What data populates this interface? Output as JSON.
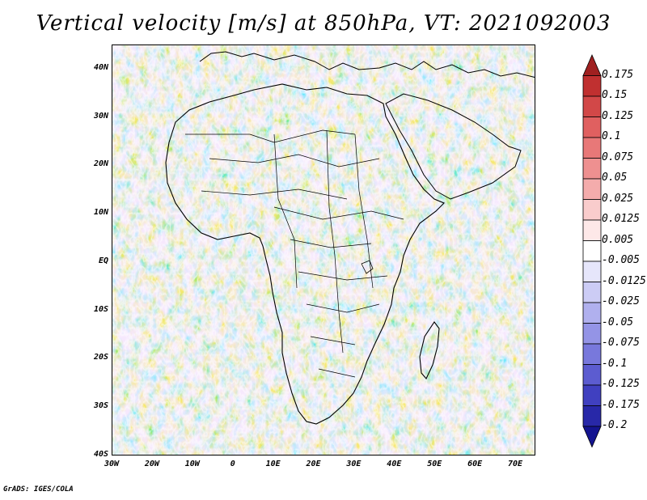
{
  "title": "Vertical velocity [m/s] at 850hPa, VT: 2021092003",
  "map": {
    "lat_labels": [
      "40N",
      "30N",
      "20N",
      "10N",
      "EQ",
      "10S",
      "20S",
      "30S",
      "40S"
    ],
    "lon_labels": [
      "30W",
      "20W",
      "10W",
      "0",
      "10E",
      "20E",
      "30E",
      "40E",
      "50E",
      "60E",
      "70E"
    ],
    "lat_range": [
      -40,
      45
    ],
    "lon_range": [
      -30,
      75
    ]
  },
  "colorbar": {
    "levels": [
      "0.175",
      "0.15",
      "0.125",
      "0.1",
      "0.075",
      "0.05",
      "0.025",
      "0.0125",
      "0.005",
      "-0.005",
      "-0.0125",
      "-0.025",
      "-0.05",
      "-0.075",
      "-0.1",
      "-0.125",
      "-0.175",
      "-0.2"
    ],
    "colors": [
      "#a02020",
      "#c03030",
      "#d24848",
      "#e06060",
      "#e87878",
      "#ee9090",
      "#f4acac",
      "#f9cccc",
      "#fde8e8",
      "#ffffff",
      "#e6e6fb",
      "#ccccf5",
      "#b0b0ee",
      "#9494e6",
      "#7878dc",
      "#5c5cd0",
      "#4040c0",
      "#2828a8",
      "#141490"
    ]
  },
  "credit": "GrADS: IGES/COLA"
}
